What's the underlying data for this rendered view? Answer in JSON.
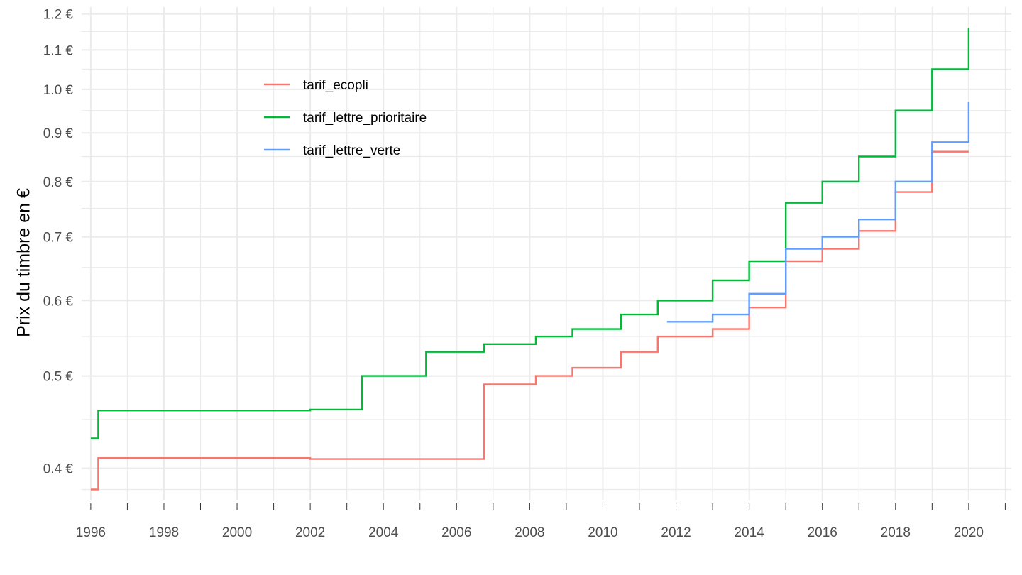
{
  "chart_data": {
    "type": "line",
    "step": true,
    "title": "",
    "xlabel": "",
    "ylabel": "Prix du timbre en €",
    "y_scale": "log",
    "xlim": [
      "1995-10-01",
      "2021-03-01"
    ],
    "ylim": [
      0.37,
      1.22
    ],
    "x_ticks": [
      1996,
      1998,
      2000,
      2002,
      2004,
      2006,
      2008,
      2010,
      2012,
      2014,
      2016,
      2018,
      2020
    ],
    "y_ticks": [
      {
        "value": 0.4,
        "label": "0.4 €"
      },
      {
        "value": 0.5,
        "label": "0.5 €"
      },
      {
        "value": 0.6,
        "label": "0.6 €"
      },
      {
        "value": 0.7,
        "label": "0.7 €"
      },
      {
        "value": 0.8,
        "label": "0.8 €"
      },
      {
        "value": 0.9,
        "label": "0.9 €"
      },
      {
        "value": 1.0,
        "label": "1.0 €"
      },
      {
        "value": 1.1,
        "label": "1.1 €"
      },
      {
        "value": 1.2,
        "label": "1.2 €"
      }
    ],
    "grid": true,
    "legend_position": "top-left inside",
    "series": [
      {
        "name": "tarif_ecopli",
        "color": "#F8766D",
        "points": [
          [
            "1996-01-01",
            0.38
          ],
          [
            "1996-03-15",
            0.41
          ],
          [
            "2002-01-01",
            0.409
          ],
          [
            "2006-10-01",
            0.49
          ],
          [
            "2008-03-01",
            0.5
          ],
          [
            "2009-03-01",
            0.51
          ],
          [
            "2010-07-01",
            0.53
          ],
          [
            "2011-07-01",
            0.55
          ],
          [
            "2013-01-01",
            0.56
          ],
          [
            "2014-01-01",
            0.59
          ],
          [
            "2015-01-01",
            0.66
          ],
          [
            "2016-01-01",
            0.68
          ],
          [
            "2017-01-01",
            0.71
          ],
          [
            "2018-01-01",
            0.78
          ],
          [
            "2019-01-01",
            0.86
          ],
          [
            "2020-01-01",
            0.86
          ]
        ]
      },
      {
        "name": "tarif_lettre_prioritaire",
        "color": "#00BA38",
        "points": [
          [
            "1996-01-01",
            0.43
          ],
          [
            "1996-03-15",
            0.46
          ],
          [
            "2002-01-01",
            0.461
          ],
          [
            "2003-06-01",
            0.5
          ],
          [
            "2005-03-01",
            0.53
          ],
          [
            "2006-10-01",
            0.54
          ],
          [
            "2008-03-01",
            0.55
          ],
          [
            "2009-03-01",
            0.56
          ],
          [
            "2010-07-01",
            0.58
          ],
          [
            "2011-07-01",
            0.6
          ],
          [
            "2013-01-01",
            0.63
          ],
          [
            "2014-01-01",
            0.66
          ],
          [
            "2015-01-01",
            0.76
          ],
          [
            "2016-01-01",
            0.8
          ],
          [
            "2017-01-01",
            0.85
          ],
          [
            "2018-01-01",
            0.95
          ],
          [
            "2019-01-01",
            1.05
          ],
          [
            "2020-01-01",
            1.16
          ]
        ]
      },
      {
        "name": "tarif_lettre_verte",
        "color": "#619CFF",
        "points": [
          [
            "2011-10-01",
            0.57
          ],
          [
            "2013-01-01",
            0.58
          ],
          [
            "2014-01-01",
            0.61
          ],
          [
            "2015-01-01",
            0.68
          ],
          [
            "2016-01-01",
            0.7
          ],
          [
            "2017-01-01",
            0.73
          ],
          [
            "2018-01-01",
            0.8
          ],
          [
            "2019-01-01",
            0.88
          ],
          [
            "2020-01-01",
            0.97
          ]
        ]
      }
    ]
  }
}
